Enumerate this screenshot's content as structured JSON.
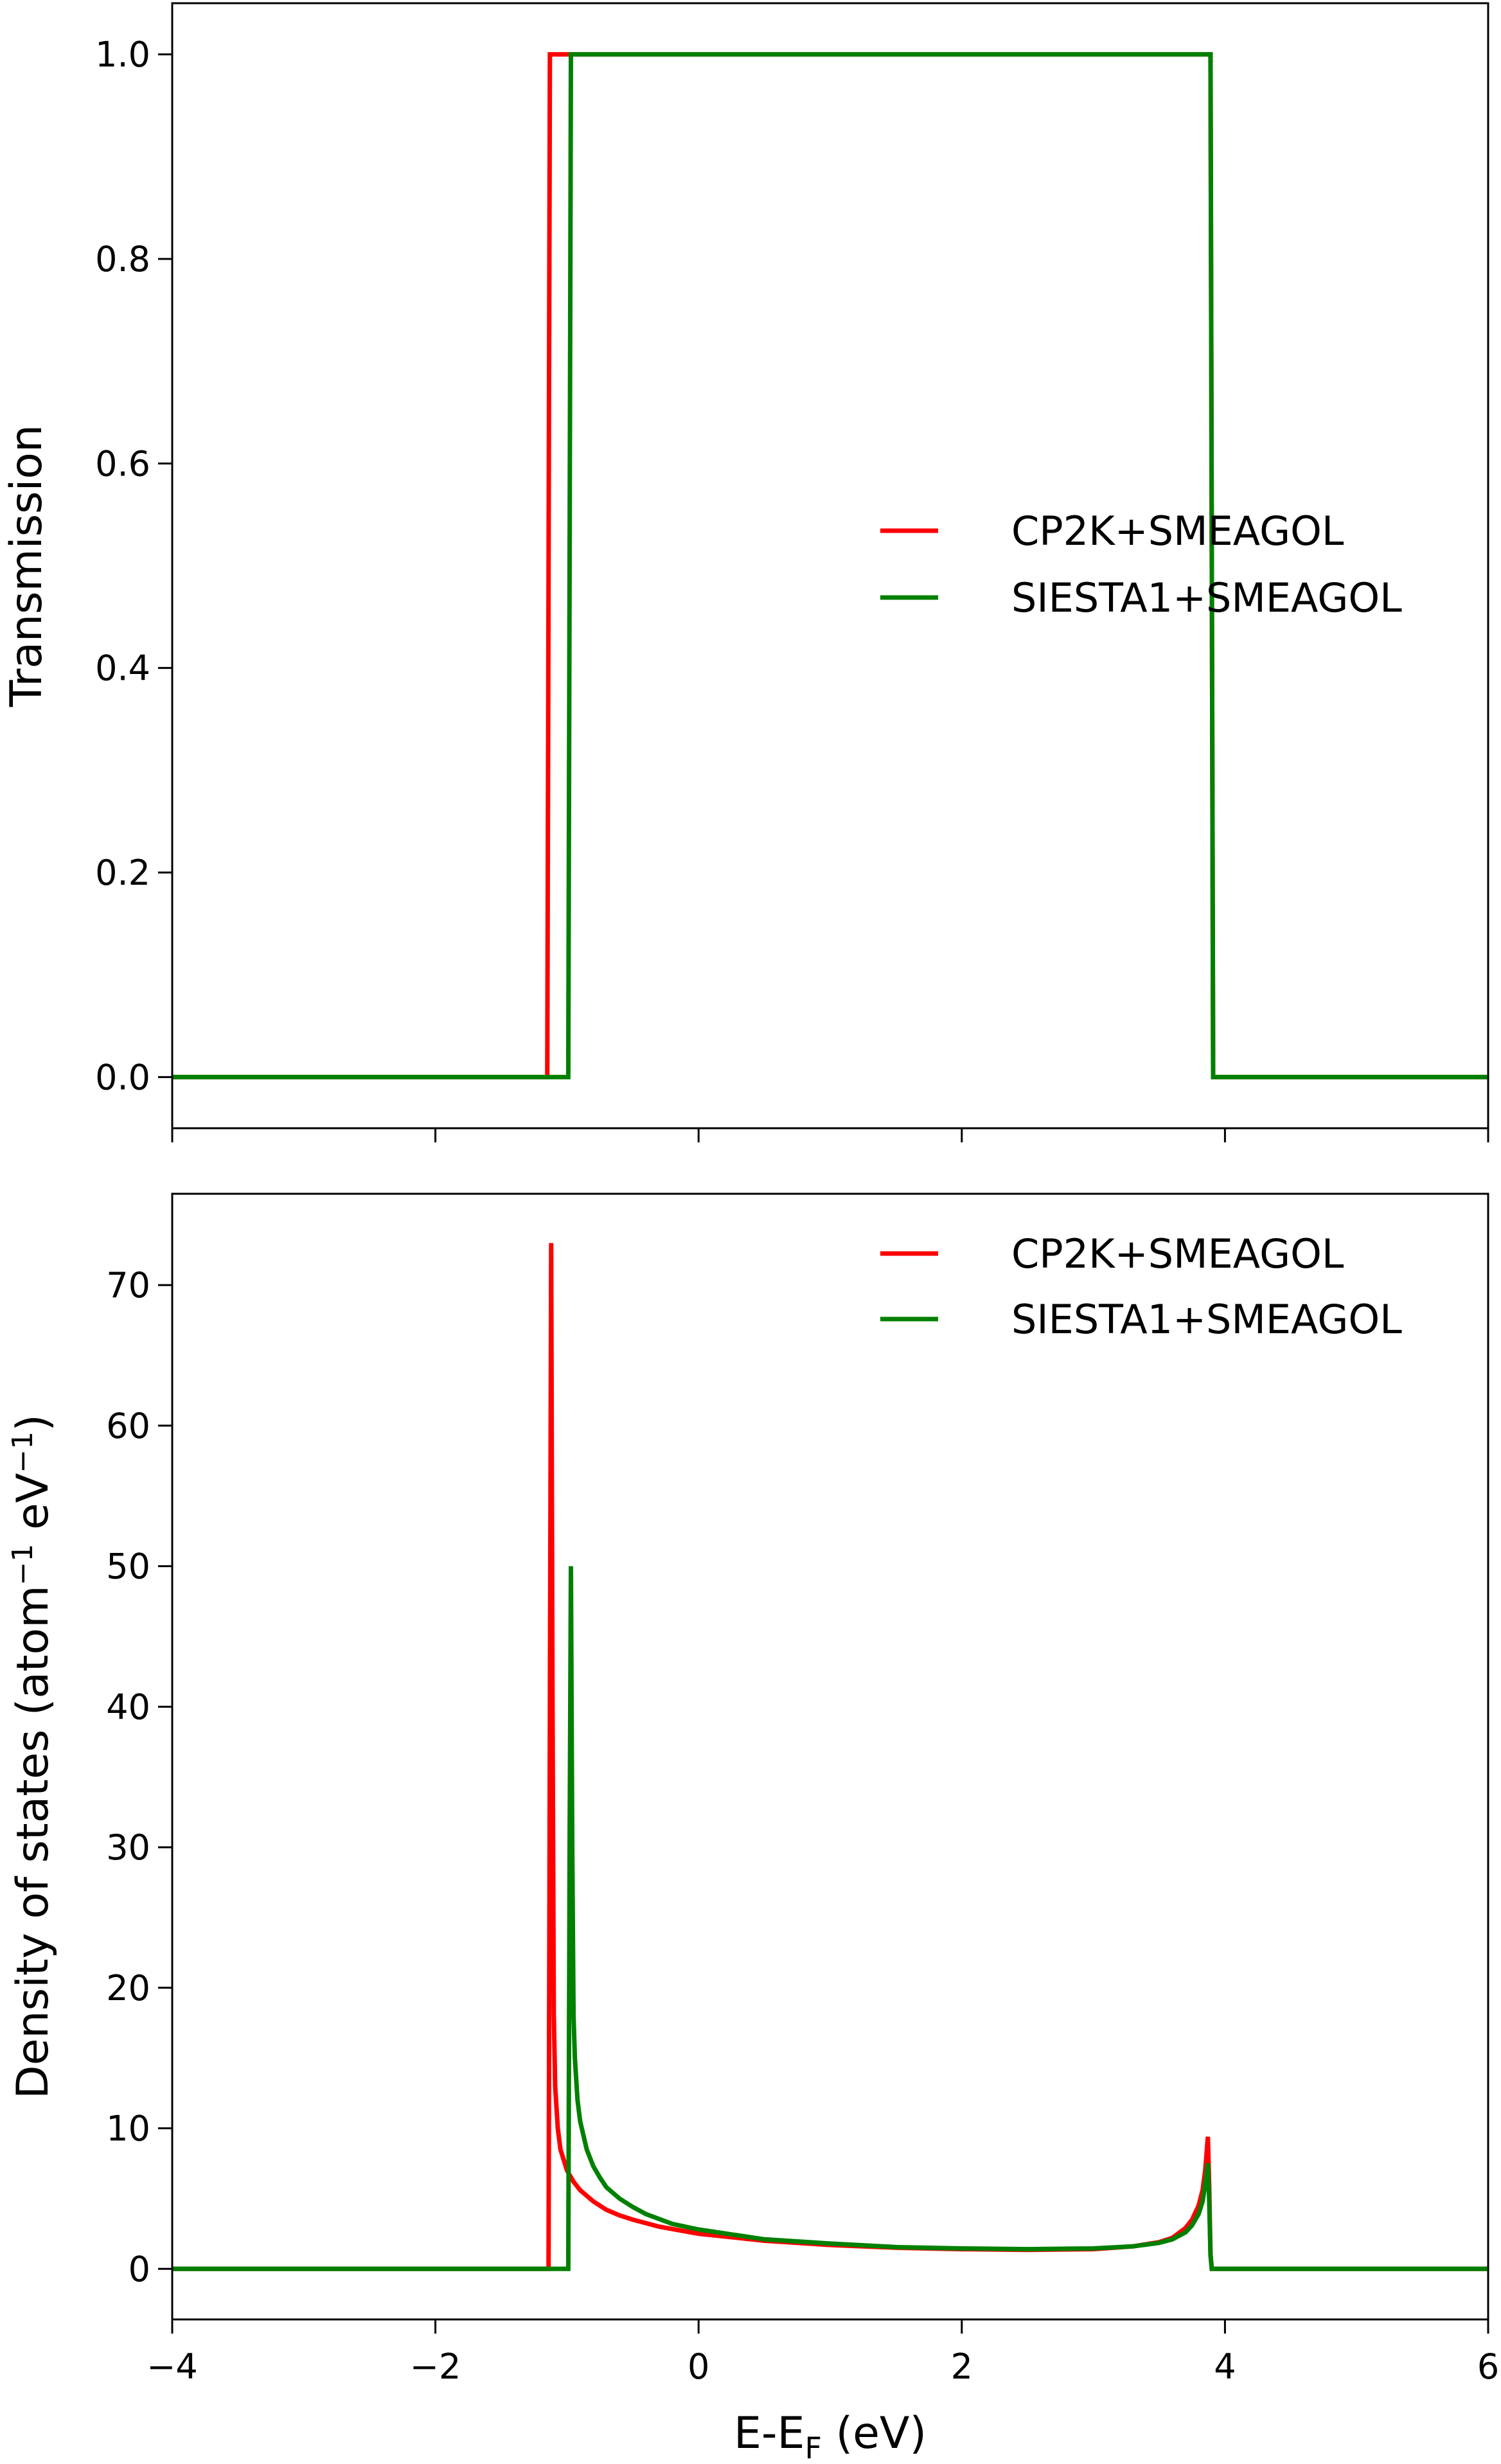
{
  "chart_data": [
    {
      "type": "line",
      "xlim": [
        -4,
        6
      ],
      "ylim": [
        -0.05,
        1.05
      ],
      "xticks": [
        -4,
        -2,
        0,
        2,
        4,
        6
      ],
      "yticks": [
        0.0,
        0.2,
        0.4,
        0.6,
        0.8,
        1.0
      ],
      "ytick_labels": [
        "0.0",
        "0.2",
        "0.4",
        "0.6",
        "0.8",
        "1.0"
      ],
      "xlabel": "",
      "ylabel": "Transmission",
      "grid": false,
      "legend_position": "center-right",
      "series": [
        {
          "name": "CP2K+SMEAGOL",
          "color": "#ff0000",
          "x": [
            -4,
            -1.15,
            -1.13,
            -1.11,
            3.87,
            3.89,
            3.91,
            6
          ],
          "y": [
            0,
            0,
            1,
            1,
            1,
            1,
            0,
            0
          ]
        },
        {
          "name": "SIESTA1+SMEAGOL",
          "color": "#008000",
          "x": [
            -4,
            -0.99,
            -0.97,
            -0.95,
            3.87,
            3.89,
            3.91,
            6
          ],
          "y": [
            0,
            0,
            1,
            1,
            1,
            1,
            0,
            0
          ]
        }
      ]
    },
    {
      "type": "line",
      "xlim": [
        -4,
        6
      ],
      "ylim": [
        -3.6,
        76.5
      ],
      "xticks": [
        -4,
        -2,
        0,
        2,
        4,
        6
      ],
      "xtick_labels": [
        "−4",
        "−2",
        "0",
        "2",
        "4",
        "6"
      ],
      "yticks": [
        0,
        10,
        20,
        30,
        40,
        50,
        60,
        70
      ],
      "ytick_labels": [
        "0",
        "10",
        "20",
        "30",
        "40",
        "50",
        "60",
        "70"
      ],
      "xlabel": "E-E",
      "xlabel_sub": "F",
      "xlabel_tail": " (eV)",
      "ylabel": "Density of states (atom",
      "ylabel_sup1": "−1",
      "ylabel_mid": " eV",
      "ylabel_sup2": "−1",
      "ylabel_tail": ")",
      "grid": false,
      "legend_position": "top-right",
      "series": [
        {
          "name": "CP2K+SMEAGOL",
          "color": "#ff0000",
          "x": [
            -4,
            -1.14,
            -1.13,
            -1.12,
            -1.11,
            -1.1,
            -1.09,
            -1.07,
            -1.05,
            -1.0,
            -0.95,
            -0.9,
            -0.8,
            -0.7,
            -0.6,
            -0.5,
            -0.3,
            0.0,
            0.5,
            1.0,
            1.5,
            2.0,
            2.5,
            3.0,
            3.3,
            3.5,
            3.6,
            3.7,
            3.75,
            3.8,
            3.83,
            3.85,
            3.87,
            3.88,
            3.89,
            3.9,
            6
          ],
          "y": [
            0,
            0,
            40,
            73,
            40,
            18,
            13,
            10,
            8.5,
            7,
            6.2,
            5.6,
            4.8,
            4.2,
            3.8,
            3.5,
            3.0,
            2.5,
            2.0,
            1.7,
            1.5,
            1.4,
            1.35,
            1.4,
            1.6,
            1.9,
            2.2,
            2.9,
            3.5,
            4.5,
            5.6,
            7,
            9.4,
            6,
            1,
            0,
            0
          ]
        },
        {
          "name": "SIESTA1+SMEAGOL",
          "color": "#008000",
          "x": [
            -4,
            -0.99,
            -0.98,
            -0.97,
            -0.96,
            -0.95,
            -0.94,
            -0.92,
            -0.9,
            -0.85,
            -0.8,
            -0.75,
            -0.7,
            -0.6,
            -0.5,
            -0.4,
            -0.2,
            0.0,
            0.5,
            1.0,
            1.5,
            2.0,
            2.5,
            3.0,
            3.3,
            3.5,
            3.6,
            3.7,
            3.75,
            3.8,
            3.83,
            3.85,
            3.87,
            3.88,
            3.89,
            3.9,
            6
          ],
          "y": [
            0,
            0,
            30,
            50,
            30,
            18,
            15,
            12,
            10.5,
            8.5,
            7.3,
            6.5,
            5.8,
            5.0,
            4.4,
            3.9,
            3.2,
            2.8,
            2.1,
            1.8,
            1.55,
            1.45,
            1.4,
            1.45,
            1.6,
            1.85,
            2.1,
            2.6,
            3.1,
            3.9,
            4.8,
            6,
            7.5,
            5,
            1,
            0,
            0
          ]
        }
      ]
    }
  ]
}
